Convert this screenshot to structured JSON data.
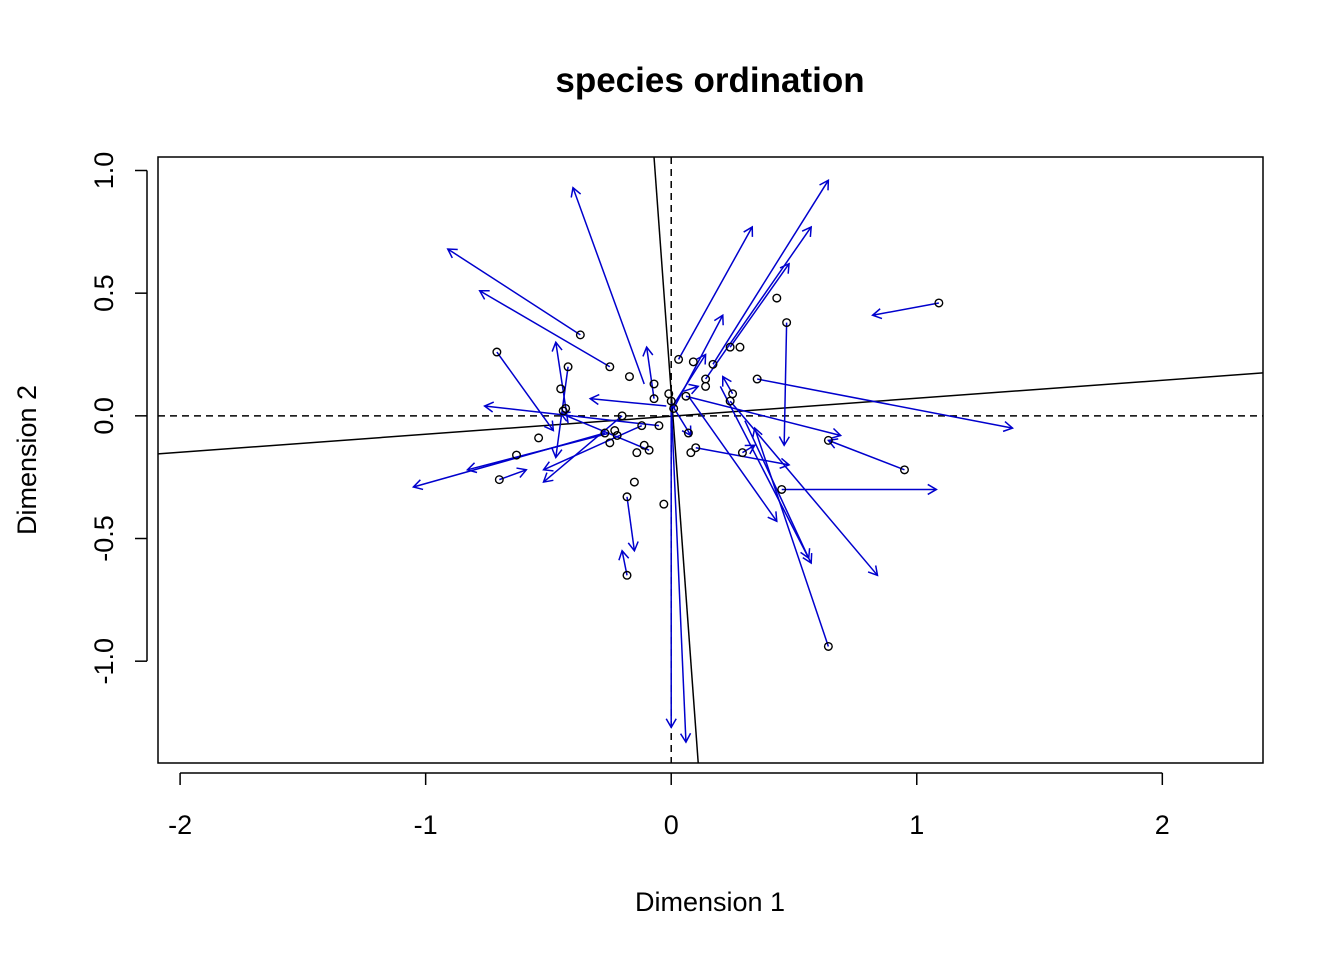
{
  "chart_data": {
    "type": "scatter",
    "title": "species ordination",
    "xlabel": "Dimension 1",
    "ylabel": "Dimension 2",
    "xlim": [
      -2.09,
      2.41
    ],
    "ylim": [
      -1.415,
      1.055
    ],
    "xticks": [
      -2,
      -1,
      0,
      1,
      2
    ],
    "xtick_labels": [
      "-2",
      "-1",
      "0",
      "1",
      "2"
    ],
    "yticks": [
      -1.0,
      -0.5,
      0.0,
      0.5,
      1.0
    ],
    "ytick_labels": [
      "-1.0",
      "-0.5",
      "0.0",
      "0.5",
      "1.0"
    ],
    "grid": false,
    "legend": "none",
    "colors": {
      "arrows": "#0000cd",
      "points": "#000000",
      "lines": "#000000"
    },
    "reference_lines_dashed": [
      {
        "orientation": "horizontal",
        "value": 0
      },
      {
        "orientation": "vertical",
        "value": 0
      }
    ],
    "reference_lines_solid": [
      {
        "x1": -2.09,
        "y1": -0.155,
        "x2": 2.41,
        "y2": 0.175
      },
      {
        "x1": -0.07,
        "y1": 1.055,
        "x2": 0.11,
        "y2": -1.415
      }
    ],
    "points": [
      {
        "x": -0.71,
        "y": 0.26
      },
      {
        "x": -0.7,
        "y": -0.26
      },
      {
        "x": -0.63,
        "y": -0.16
      },
      {
        "x": -0.54,
        "y": -0.09
      },
      {
        "x": -0.45,
        "y": 0.11
      },
      {
        "x": -0.44,
        "y": 0.02
      },
      {
        "x": -0.43,
        "y": 0.03
      },
      {
        "x": -0.42,
        "y": 0.2
      },
      {
        "x": -0.37,
        "y": 0.33
      },
      {
        "x": -0.25,
        "y": 0.2
      },
      {
        "x": -0.27,
        "y": -0.07
      },
      {
        "x": -0.25,
        "y": -0.11
      },
      {
        "x": -0.23,
        "y": -0.06
      },
      {
        "x": -0.22,
        "y": -0.08
      },
      {
        "x": -0.2,
        "y": 0.0
      },
      {
        "x": -0.17,
        "y": 0.16
      },
      {
        "x": -0.14,
        "y": -0.15
      },
      {
        "x": -0.12,
        "y": -0.04
      },
      {
        "x": -0.11,
        "y": -0.12
      },
      {
        "x": -0.09,
        "y": -0.14
      },
      {
        "x": -0.07,
        "y": 0.13
      },
      {
        "x": -0.07,
        "y": 0.07
      },
      {
        "x": -0.05,
        "y": -0.04
      },
      {
        "x": -0.01,
        "y": 0.09
      },
      {
        "x": 0.0,
        "y": 0.06
      },
      {
        "x": 0.01,
        "y": 0.03
      },
      {
        "x": 0.03,
        "y": 0.23
      },
      {
        "x": 0.06,
        "y": 0.08
      },
      {
        "x": 0.09,
        "y": 0.22
      },
      {
        "x": 0.07,
        "y": -0.07
      },
      {
        "x": 0.08,
        "y": -0.15
      },
      {
        "x": 0.1,
        "y": -0.13
      },
      {
        "x": 0.14,
        "y": 0.12
      },
      {
        "x": 0.14,
        "y": 0.15
      },
      {
        "x": 0.17,
        "y": 0.21
      },
      {
        "x": 0.24,
        "y": 0.28
      },
      {
        "x": 0.25,
        "y": 0.09
      },
      {
        "x": 0.24,
        "y": 0.06
      },
      {
        "x": 0.28,
        "y": 0.28
      },
      {
        "x": 0.29,
        "y": -0.15
      },
      {
        "x": 0.35,
        "y": 0.15
      },
      {
        "x": 0.43,
        "y": 0.48
      },
      {
        "x": 0.45,
        "y": -0.3
      },
      {
        "x": 0.47,
        "y": 0.38
      },
      {
        "x": 0.64,
        "y": -0.1
      },
      {
        "x": 0.64,
        "y": -0.94
      },
      {
        "x": 0.95,
        "y": -0.22
      },
      {
        "x": 1.09,
        "y": 0.46
      },
      {
        "x": -0.18,
        "y": -0.33
      },
      {
        "x": -0.15,
        "y": -0.27
      },
      {
        "x": -0.18,
        "y": -0.65
      },
      {
        "x": -0.03,
        "y": -0.36
      }
    ],
    "arrows": [
      {
        "x0": -0.37,
        "y0": 0.33,
        "x1": -0.91,
        "y1": 0.68
      },
      {
        "x0": -0.25,
        "y0": 0.2,
        "x1": -0.78,
        "y1": 0.51
      },
      {
        "x0": -0.11,
        "y0": 0.13,
        "x1": -0.4,
        "y1": 0.93
      },
      {
        "x0": 0.03,
        "y0": 0.23,
        "x1": 0.33,
        "y1": 0.77
      },
      {
        "x0": 0.17,
        "y0": 0.21,
        "x1": 0.64,
        "y1": 0.96
      },
      {
        "x0": 0.14,
        "y0": 0.15,
        "x1": 0.57,
        "y1": 0.77
      },
      {
        "x0": 0.24,
        "y0": 0.28,
        "x1": 0.48,
        "y1": 0.62
      },
      {
        "x0": 1.09,
        "y0": 0.46,
        "x1": 0.82,
        "y1": 0.41
      },
      {
        "x0": 0.35,
        "y0": 0.15,
        "x1": 1.39,
        "y1": -0.05
      },
      {
        "x0": 0.47,
        "y0": 0.38,
        "x1": 0.46,
        "y1": -0.12
      },
      {
        "x0": 0.45,
        "y0": -0.3,
        "x1": 1.08,
        "y1": -0.3
      },
      {
        "x0": 0.95,
        "y0": -0.22,
        "x1": 0.64,
        "y1": -0.1
      },
      {
        "x0": 0.64,
        "y0": -0.94,
        "x1": 0.34,
        "y1": -0.05
      },
      {
        "x0": 0.24,
        "y0": 0.06,
        "x1": 0.84,
        "y1": -0.65
      },
      {
        "x0": 0.1,
        "y0": -0.13,
        "x1": 0.48,
        "y1": -0.2
      },
      {
        "x0": 0.06,
        "y0": 0.08,
        "x1": 0.69,
        "y1": -0.08
      },
      {
        "x0": 0.07,
        "y0": 0.08,
        "x1": 0.43,
        "y1": -0.43
      },
      {
        "x0": 0.2,
        "y0": 0.12,
        "x1": 0.57,
        "y1": -0.6
      },
      {
        "x0": 0.29,
        "y0": -0.15,
        "x1": 0.34,
        "y1": -0.12
      },
      {
        "x0": 0.0,
        "y0": 0.05,
        "x1": 0.06,
        "y1": -1.33
      },
      {
        "x0": 0.0,
        "y0": 0.03,
        "x1": 0.0,
        "y1": -1.27
      },
      {
        "x0": 0.0,
        "y0": 0.05,
        "x1": 0.08,
        "y1": -0.08
      },
      {
        "x0": -0.07,
        "y0": 0.07,
        "x1": -0.1,
        "y1": 0.28
      },
      {
        "x0": -0.02,
        "y0": 0.04,
        "x1": -0.33,
        "y1": 0.07
      },
      {
        "x0": -0.05,
        "y0": -0.04,
        "x1": -0.76,
        "y1": 0.04
      },
      {
        "x0": -0.09,
        "y0": -0.14,
        "x1": -0.45,
        "y1": 0.01
      },
      {
        "x0": -0.12,
        "y0": -0.04,
        "x1": -0.52,
        "y1": -0.22
      },
      {
        "x0": -0.2,
        "y0": 0.0,
        "x1": -0.52,
        "y1": -0.27
      },
      {
        "x0": -0.25,
        "y0": -0.07,
        "x1": -0.83,
        "y1": -0.22
      },
      {
        "x0": -0.27,
        "y0": -0.07,
        "x1": -1.05,
        "y1": -0.29
      },
      {
        "x0": -0.42,
        "y0": -0.03,
        "x1": -0.47,
        "y1": 0.3
      },
      {
        "x0": -0.42,
        "y0": 0.2,
        "x1": -0.47,
        "y1": -0.17
      },
      {
        "x0": -0.71,
        "y0": 0.26,
        "x1": -0.48,
        "y1": -0.06
      },
      {
        "x0": -0.7,
        "y0": -0.26,
        "x1": -0.59,
        "y1": -0.22
      },
      {
        "x0": -0.18,
        "y0": -0.33,
        "x1": -0.15,
        "y1": -0.55
      },
      {
        "x0": -0.18,
        "y0": -0.65,
        "x1": -0.2,
        "y1": -0.55
      },
      {
        "x0": 0.0,
        "y0": 0.03,
        "x1": 0.14,
        "y1": 0.25
      },
      {
        "x0": 0.01,
        "y0": 0.03,
        "x1": 0.21,
        "y1": 0.41
      },
      {
        "x0": 0.25,
        "y0": 0.09,
        "x1": 0.21,
        "y1": 0.16
      },
      {
        "x0": 0.3,
        "y0": -0.02,
        "x1": 0.56,
        "y1": -0.58
      },
      {
        "x0": 0.05,
        "y0": 0.1,
        "x1": 0.11,
        "y1": 0.12
      }
    ]
  }
}
